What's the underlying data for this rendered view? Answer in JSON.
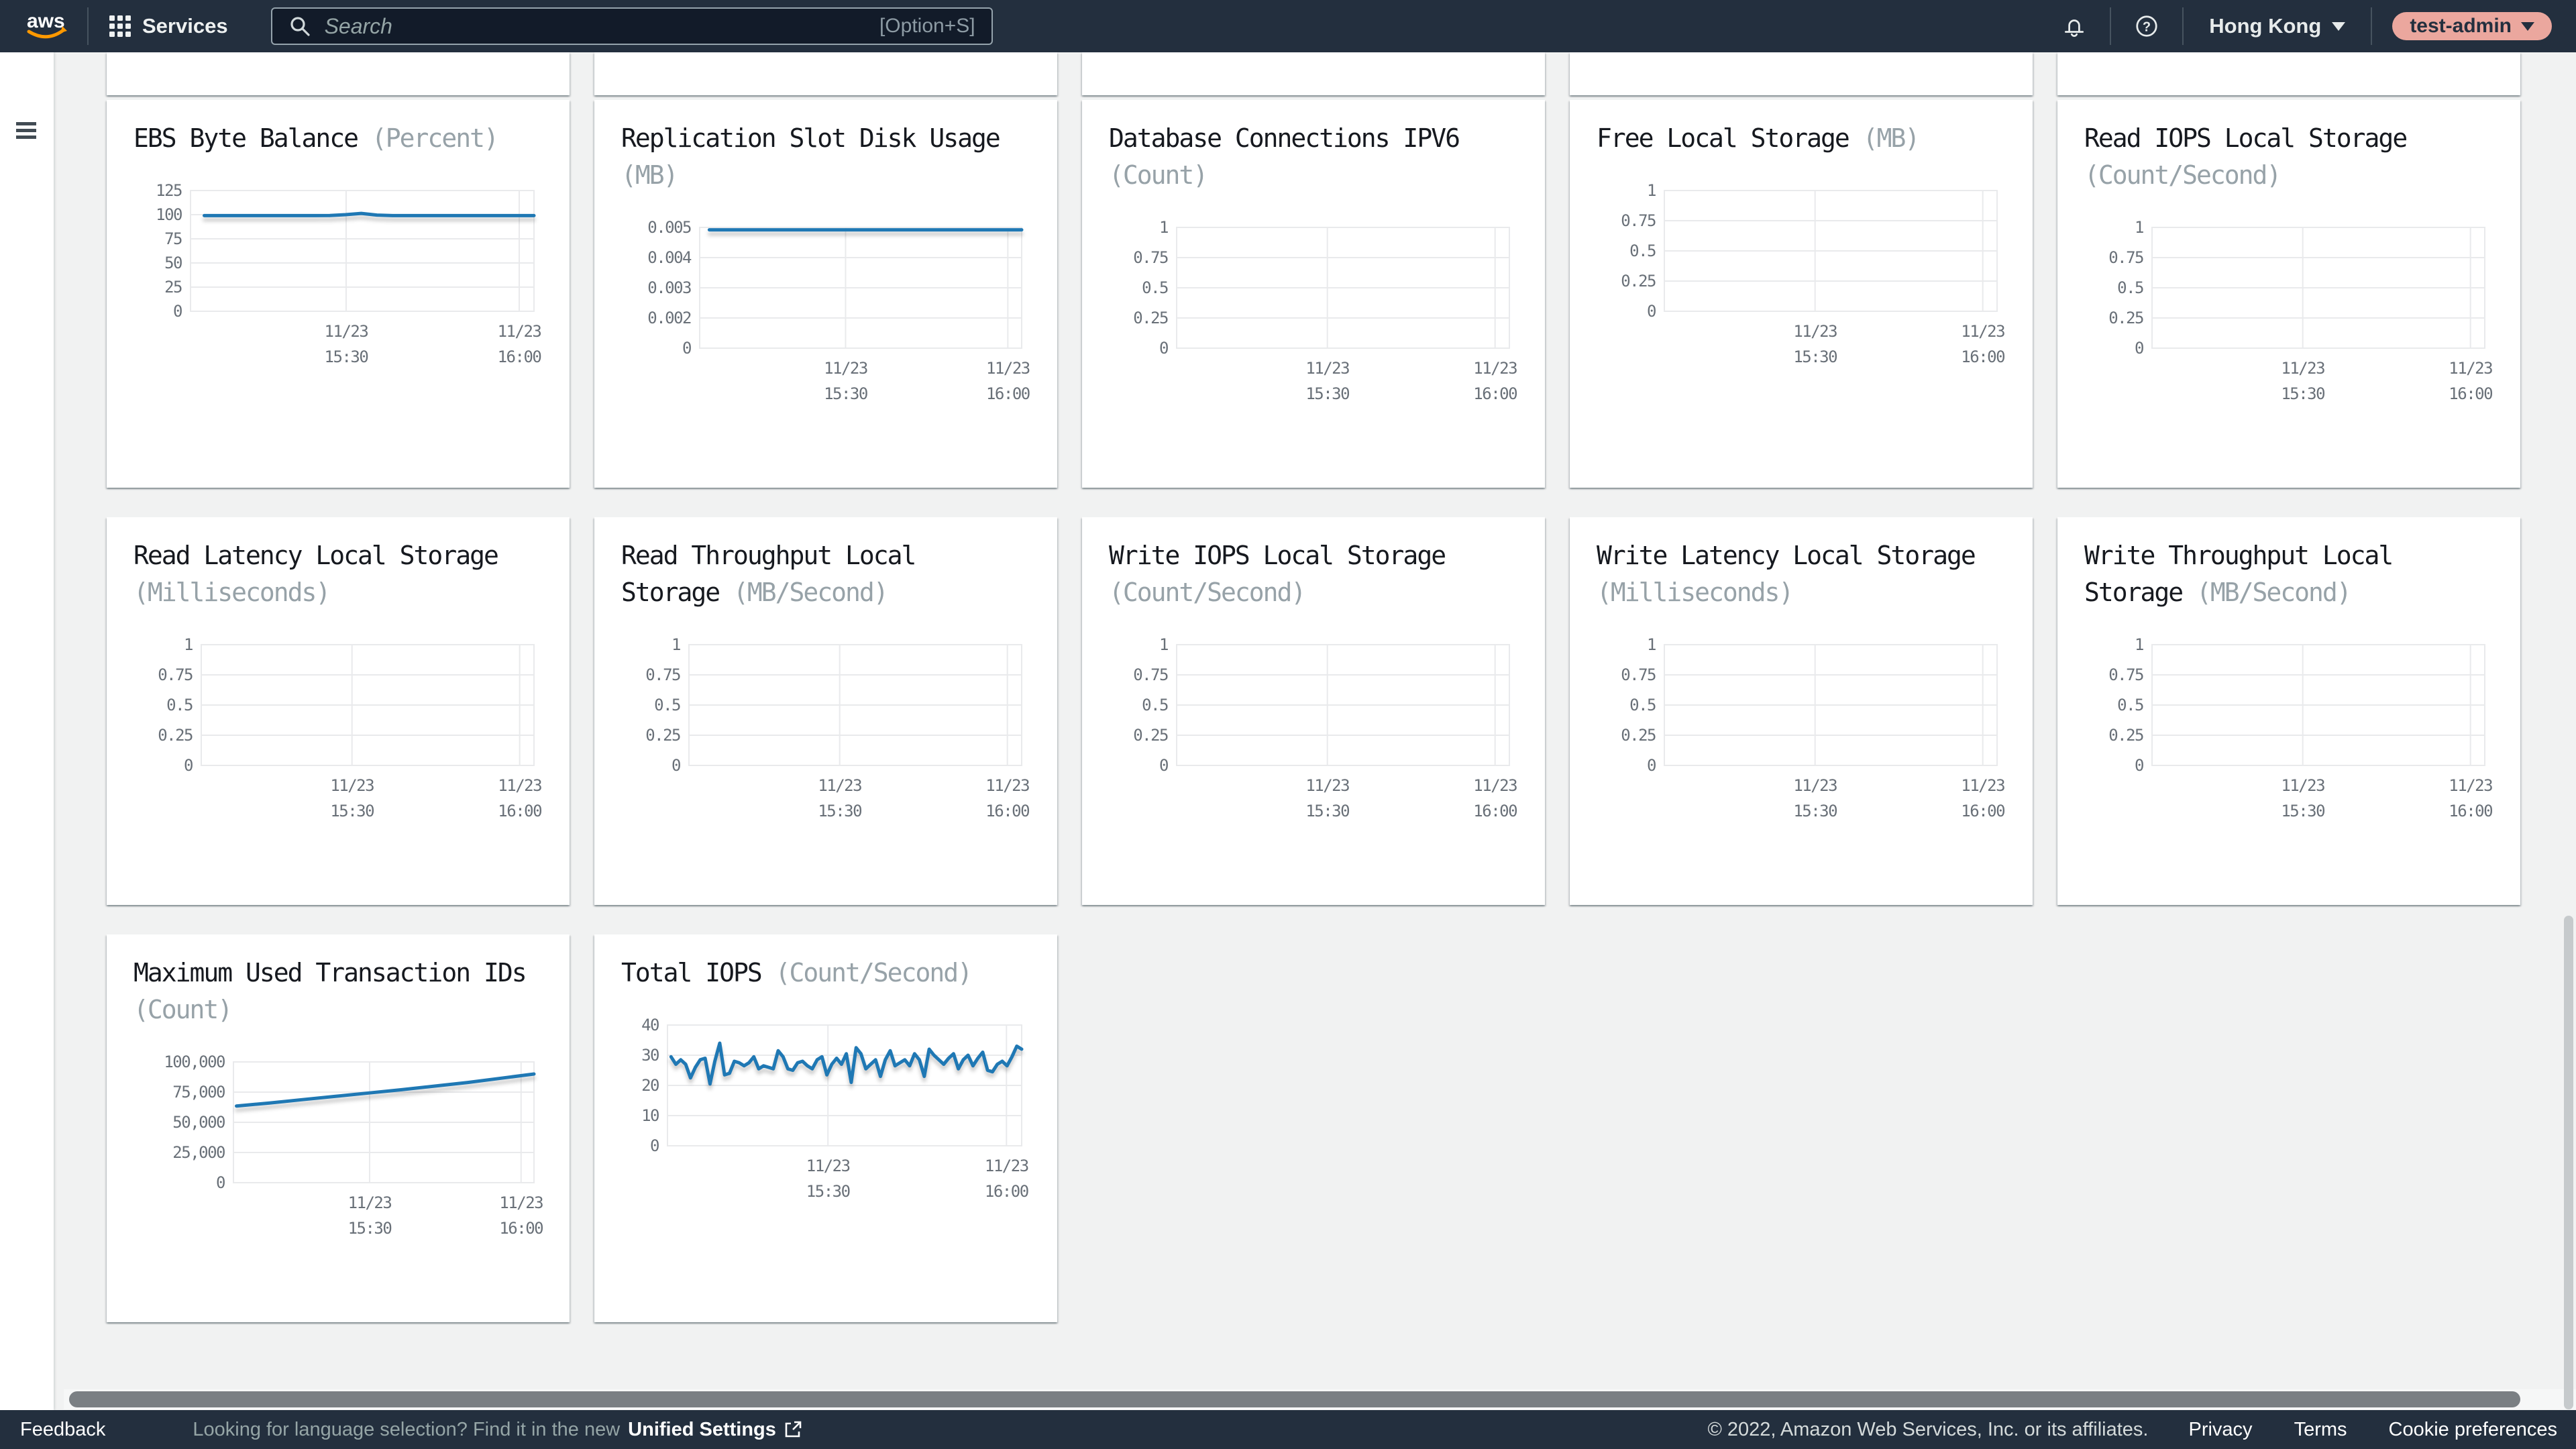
{
  "topnav": {
    "logo": "aws",
    "services_label": "Services",
    "search": {
      "placeholder": "Search",
      "shortcut": "[Option+S]"
    },
    "region": "Hong Kong",
    "account": "test-admin"
  },
  "footer": {
    "feedback": "Feedback",
    "language_hint": "Looking for language selection? Find it in the new",
    "unified_settings": "Unified Settings",
    "copyright": "© 2022, Amazon Web Services, Inc. or its affiliates.",
    "links": {
      "privacy": "Privacy",
      "terms": "Terms",
      "cookies": "Cookie preferences"
    }
  },
  "colors": {
    "navbar_bg": "#232f3e",
    "content_bg": "#f1f2f2",
    "card_bg": "#ffffff",
    "line_blue": "#1f78b4",
    "grid": "#e9eaec",
    "title": "#16191f",
    "unit_gray": "#97a2a8",
    "tick_gray": "#697078",
    "account_pill": "#eba79e"
  },
  "time_axis": {
    "labels": [
      [
        "11/23",
        "15:30"
      ],
      [
        "11/23",
        "16:00"
      ]
    ],
    "positions": [
      0.453,
      0.957
    ]
  },
  "chart_data": [
    {
      "type": "line",
      "title": "EBS Byte Balance",
      "unit": "(Percent)",
      "yticks": [
        "125",
        "100",
        "75",
        "50",
        "25",
        "0"
      ],
      "ymin": 0,
      "ymax": 125,
      "x_start": 0.04,
      "values": [
        99,
        99,
        99,
        99,
        99,
        99,
        99,
        99,
        99.2,
        100,
        101.3,
        99.6,
        99,
        99,
        99,
        99,
        99,
        99,
        99,
        99,
        99,
        99
      ]
    },
    {
      "type": "line",
      "title": "Replication Slot Disk Usage",
      "unit": "(MB)",
      "yticks": [
        "0.005",
        "0.004",
        "0.003",
        "0.002",
        "0"
      ],
      "ymin": 0,
      "ymax": 0.005,
      "x_start": 0.03,
      "values": [
        0.0049,
        0.0049,
        0.0049,
        0.0049,
        0.0049,
        0.0049,
        0.0049,
        0.0049,
        0.0049,
        0.0049,
        0.0049,
        0.0049
      ]
    },
    {
      "type": "line",
      "title": "Database Connections IPV6",
      "unit": "(Count)",
      "yticks": [
        "1",
        "0.75",
        "0.5",
        "0.25",
        "0"
      ],
      "ymin": 0,
      "ymax": 1,
      "values": []
    },
    {
      "type": "line",
      "title": "Free Local Storage",
      "unit": "(MB)",
      "yticks": [
        "1",
        "0.75",
        "0.5",
        "0.25",
        "0"
      ],
      "ymin": 0,
      "ymax": 1,
      "values": []
    },
    {
      "type": "line",
      "title": "Read IOPS Local Storage",
      "unit": "(Count/Second)",
      "yticks": [
        "1",
        "0.75",
        "0.5",
        "0.25",
        "0"
      ],
      "ymin": 0,
      "ymax": 1,
      "values": []
    },
    {
      "type": "line",
      "title": "Read Latency Local Storage",
      "unit": "(Milliseconds)",
      "yticks": [
        "1",
        "0.75",
        "0.5",
        "0.25",
        "0"
      ],
      "ymin": 0,
      "ymax": 1,
      "values": []
    },
    {
      "type": "line",
      "title": "Read Throughput Local Storage",
      "unit": "(MB/Second)",
      "yticks": [
        "1",
        "0.75",
        "0.5",
        "0.25",
        "0"
      ],
      "ymin": 0,
      "ymax": 1,
      "values": []
    },
    {
      "type": "line",
      "title": "Write IOPS Local Storage",
      "unit": "(Count/Second)",
      "yticks": [
        "1",
        "0.75",
        "0.5",
        "0.25",
        "0"
      ],
      "ymin": 0,
      "ymax": 1,
      "values": []
    },
    {
      "type": "line",
      "title": "Write Latency Local Storage",
      "unit": "(Milliseconds)",
      "yticks": [
        "1",
        "0.75",
        "0.5",
        "0.25",
        "0"
      ],
      "ymin": 0,
      "ymax": 1,
      "values": []
    },
    {
      "type": "line",
      "title": "Write Throughput Local Storage",
      "unit": "(MB/Second)",
      "yticks": [
        "1",
        "0.75",
        "0.5",
        "0.25",
        "0"
      ],
      "ymin": 0,
      "ymax": 1,
      "values": []
    },
    {
      "type": "line",
      "title": "Maximum Used Transaction IDs",
      "unit": "(Count)",
      "yticks": [
        "100,000",
        "75,000",
        "50,000",
        "25,000",
        "0"
      ],
      "ymin": 0,
      "ymax": 100000,
      "x_start": 0.01,
      "values": [
        63500,
        66000,
        68800,
        71500,
        74300,
        77000,
        80000,
        83000,
        86500,
        90000
      ]
    },
    {
      "type": "line",
      "title": "Total IOPS",
      "unit": "(Count/Second)",
      "yticks": [
        "40",
        "30",
        "20",
        "10",
        "0"
      ],
      "ymin": 0,
      "ymax": 40,
      "x_start": 0.01,
      "values": [
        29.5,
        27,
        28.5,
        27,
        22.5,
        26,
        28.5,
        29,
        20.5,
        28,
        34,
        23.5,
        24,
        28,
        27.5,
        26.5,
        27.5,
        29.5,
        25.5,
        26.5,
        26,
        25.5,
        31.5,
        29.5,
        25.5,
        25,
        27.5,
        28,
        26.5,
        25.5,
        28.5,
        29.5,
        23.5,
        27,
        29,
        27,
        30.5,
        21,
        32.5,
        30.5,
        25.5,
        27,
        28.5,
        23,
        28.5,
        31.5,
        26.5,
        27.5,
        28.5,
        26.5,
        30.5,
        28.5,
        23,
        32,
        30,
        28.5,
        27,
        29,
        30.5,
        25.5,
        28.5,
        30,
        26.5,
        29,
        31,
        25,
        24.5,
        27,
        28,
        26.5,
        29.5,
        33,
        32
      ]
    }
  ]
}
